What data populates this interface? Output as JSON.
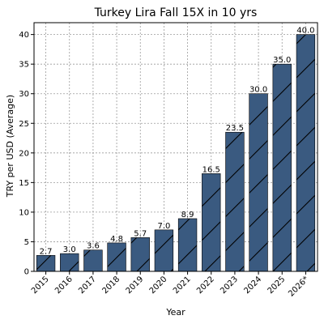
{
  "chart_data": {
    "type": "bar",
    "title": "Turkey Lira Fall 15X in 10 yrs",
    "xlabel": "Year",
    "ylabel": "TRY per USD (Average)",
    "categories": [
      "2015",
      "2016",
      "2017",
      "2018",
      "2019",
      "2020",
      "2021",
      "2022",
      "2023",
      "2024",
      "2025",
      "2026*"
    ],
    "values": [
      2.7,
      3.0,
      3.6,
      4.8,
      5.7,
      7.0,
      8.9,
      16.5,
      23.5,
      30.0,
      35.0,
      40.0
    ],
    "value_labels": [
      "2.7",
      "3.0",
      "3.6",
      "4.8",
      "5.7",
      "7.0",
      "8.9",
      "16.5",
      "23.5",
      "30.0",
      "35.0",
      "40.0"
    ],
    "ylim": [
      0,
      42
    ],
    "yticks": [
      0,
      5,
      10,
      15,
      20,
      25,
      30,
      35,
      40
    ],
    "grid": true,
    "bar_color": "#3a5a80",
    "hatch": "diagonal"
  }
}
